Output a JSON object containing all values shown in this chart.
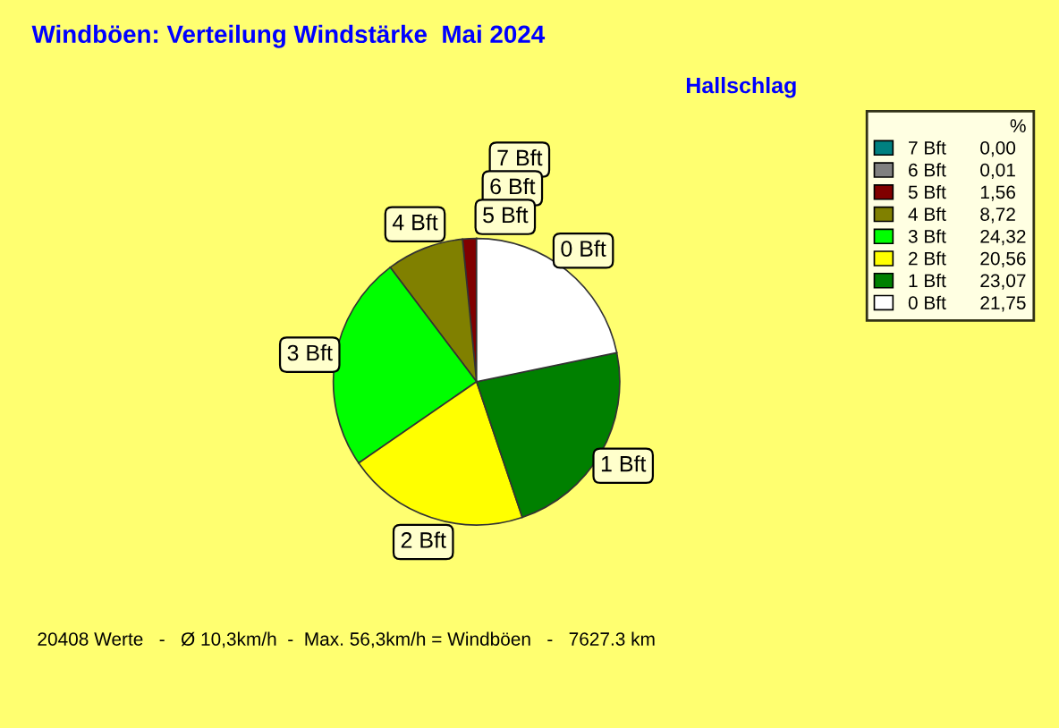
{
  "chart_data": {
    "type": "pie",
    "title": "Windböen: Verteilung Windstärke  Mai 2024",
    "subtitle": "Hallschlag",
    "legend_title": "%",
    "categories": [
      "7 Bft",
      "6 Bft",
      "5 Bft",
      "4 Bft",
      "3 Bft",
      "2 Bft",
      "1 Bft",
      "0 Bft"
    ],
    "values": [
      0.0,
      0.01,
      1.56,
      8.72,
      24.32,
      20.56,
      23.07,
      21.75
    ],
    "value_labels": [
      "0,00",
      "0,01",
      "1,56",
      "8,72",
      "24,32",
      "20,56",
      "23,07",
      "21,75"
    ],
    "colors": [
      "#008080",
      "#808080",
      "#800000",
      "#808000",
      "#00ff00",
      "#ffff00",
      "#008000",
      "#ffffff"
    ],
    "legend": "top right",
    "annotations": [
      "20408 Werte   -   Ø 10,3km/h  -  Max. 56,3km/h = Windböen   -   7627.3 km"
    ]
  }
}
